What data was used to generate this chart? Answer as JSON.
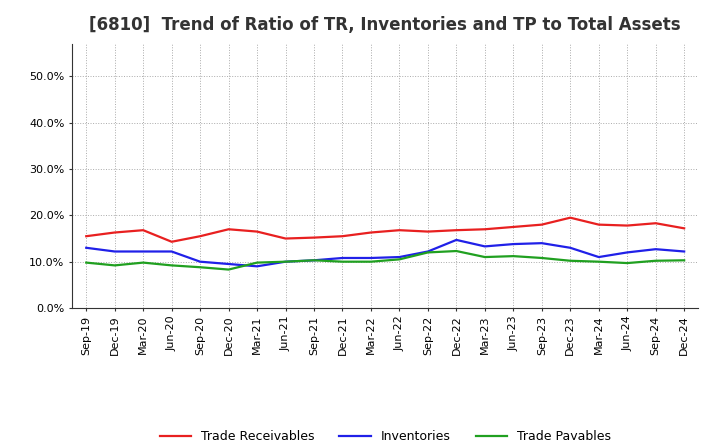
{
  "title": "[6810]  Trend of Ratio of TR, Inventories and TP to Total Assets",
  "x_labels": [
    "Sep-19",
    "Dec-19",
    "Mar-20",
    "Jun-20",
    "Sep-20",
    "Dec-20",
    "Mar-21",
    "Jun-21",
    "Sep-21",
    "Dec-21",
    "Mar-22",
    "Jun-22",
    "Sep-22",
    "Dec-22",
    "Mar-23",
    "Jun-23",
    "Sep-23",
    "Dec-23",
    "Mar-24",
    "Jun-24",
    "Sep-24",
    "Dec-24"
  ],
  "trade_receivables": [
    0.155,
    0.163,
    0.168,
    0.143,
    0.155,
    0.17,
    0.165,
    0.15,
    0.152,
    0.155,
    0.163,
    0.168,
    0.165,
    0.168,
    0.17,
    0.175,
    0.18,
    0.195,
    0.18,
    0.178,
    0.183,
    0.172
  ],
  "inventories": [
    0.13,
    0.122,
    0.122,
    0.122,
    0.1,
    0.095,
    0.09,
    0.1,
    0.103,
    0.108,
    0.108,
    0.11,
    0.122,
    0.147,
    0.133,
    0.138,
    0.14,
    0.13,
    0.11,
    0.12,
    0.127,
    0.122
  ],
  "trade_payables": [
    0.098,
    0.092,
    0.098,
    0.092,
    0.088,
    0.083,
    0.098,
    0.1,
    0.103,
    0.1,
    0.1,
    0.105,
    0.12,
    0.123,
    0.11,
    0.112,
    0.108,
    0.102,
    0.1,
    0.097,
    0.102,
    0.103
  ],
  "tr_color": "#e82020",
  "inv_color": "#2020e8",
  "tp_color": "#20a020",
  "ylim": [
    0.0,
    0.57
  ],
  "yticks": [
    0.0,
    0.1,
    0.2,
    0.3,
    0.4,
    0.5
  ],
  "background_color": "#ffffff",
  "grid_color": "#aaaaaa",
  "legend_labels": [
    "Trade Receivables",
    "Inventories",
    "Trade Payables"
  ],
  "line_width": 1.6,
  "title_fontsize": 12,
  "tick_fontsize": 8,
  "legend_fontsize": 9
}
